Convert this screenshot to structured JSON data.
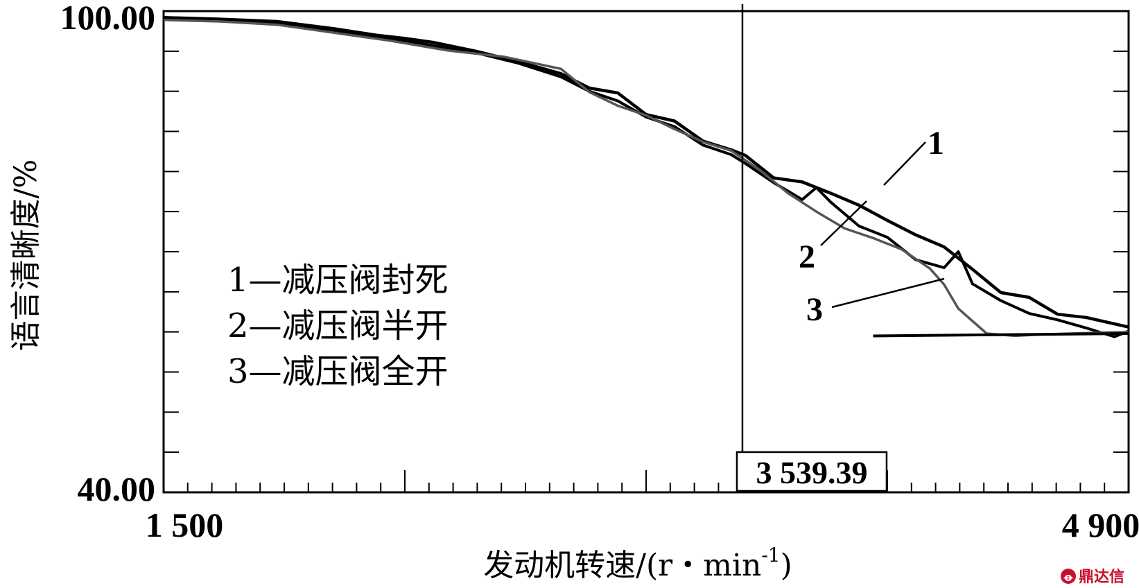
{
  "chart_data": {
    "type": "line",
    "xlabel": "发动机转速/(r・min",
    "xlabel_sup": "-1",
    "xlabel_close": ")",
    "ylabel": "语言清晰度/%",
    "xlim": [
      1500,
      4900
    ],
    "ylim": [
      40,
      100
    ],
    "x_tick_labels": [
      "1 500",
      "4 900"
    ],
    "y_tick_labels": [
      "100.00",
      "40.00"
    ],
    "cursor": {
      "x": 3539.39,
      "label": "3 539.39"
    },
    "legend": [
      "1—减压阀封死",
      "2—减压阀半开",
      "3—减压阀全开"
    ],
    "callouts": [
      "1",
      "2",
      "3"
    ],
    "baseline": {
      "x": [
        4000,
        4900
      ],
      "y": [
        59.5,
        59.8
      ]
    },
    "series": [
      {
        "name": "1",
        "x": [
          1500,
          1700,
          1900,
          2100,
          2250,
          2350,
          2450,
          2600,
          2750,
          2900,
          3000,
          3100,
          3200,
          3300,
          3400,
          3500,
          3550,
          3650,
          3750,
          3850,
          3950,
          4050,
          4150,
          4250,
          4350,
          4450,
          4550,
          4650,
          4750,
          4850,
          4900
        ],
        "y": [
          99.2,
          99.0,
          98.7,
          97.8,
          97.0,
          96.6,
          96.1,
          95.0,
          93.7,
          92.2,
          90.4,
          89.8,
          87.1,
          86.3,
          83.8,
          82.7,
          82.0,
          79.2,
          78.7,
          77.3,
          75.8,
          73.9,
          72.1,
          70.6,
          67.8,
          64.9,
          64.3,
          62.2,
          61.8,
          61.0,
          60.6
        ]
      },
      {
        "name": "2",
        "x": [
          1500,
          1700,
          1900,
          2100,
          2250,
          2350,
          2450,
          2600,
          2750,
          2900,
          3000,
          3100,
          3200,
          3300,
          3400,
          3500,
          3550,
          3650,
          3750,
          3800,
          3850,
          3950,
          4050,
          4150,
          4250,
          4300,
          4350,
          4450,
          4550,
          4650,
          4750,
          4850,
          4900
        ],
        "y": [
          99.0,
          98.8,
          98.4,
          97.6,
          96.8,
          96.3,
          95.7,
          94.8,
          93.5,
          91.8,
          90.0,
          88.8,
          86.8,
          85.6,
          83.3,
          82.1,
          81.0,
          78.6,
          76.5,
          78.0,
          76.2,
          73.2,
          71.8,
          69.0,
          68.0,
          70.0,
          66.0,
          63.9,
          62.3,
          61.5,
          60.5,
          59.4,
          60.1
        ]
      },
      {
        "name": "3",
        "x": [
          1500,
          1700,
          1900,
          2100,
          2300,
          2500,
          2700,
          2900,
          3000,
          3100,
          3200,
          3300,
          3400,
          3500,
          3600,
          3700,
          3800,
          3900,
          4000,
          4100,
          4200,
          4250,
          4300,
          4400,
          4500,
          4600,
          4700,
          4800,
          4900
        ],
        "y": [
          98.9,
          98.7,
          98.3,
          97.3,
          96.3,
          95.1,
          94.3,
          92.8,
          89.9,
          88.2,
          87.0,
          85.3,
          83.7,
          82.6,
          80.2,
          77.3,
          75.0,
          72.9,
          71.7,
          70.3,
          67.9,
          65.9,
          62.9,
          59.8,
          59.5,
          59.7,
          59.8,
          59.9,
          60.0
        ]
      }
    ]
  },
  "watermark": {
    "icon": "ding-da-xin-logo",
    "text": "鼎达信"
  }
}
